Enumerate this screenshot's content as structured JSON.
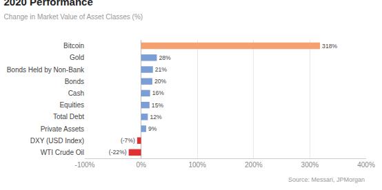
{
  "chart_data": {
    "type": "bar",
    "orientation": "horizontal",
    "title": "2020 Performance",
    "subtitle": "Change in Market Value of Asset Classes (%)",
    "annotations": [
      "Source: Messari, JPMorgan"
    ],
    "categories": [
      "Bitcoin",
      "Gold",
      "Bonds Held by Non-Bank",
      "Bonds",
      "Cash",
      "Equities",
      "Total Debt",
      "Private Assets",
      "DXY (USD Index)",
      "WTI Crude Oil"
    ],
    "values": [
      318,
      28,
      21,
      20,
      16,
      15,
      12,
      9,
      -7,
      -22
    ],
    "value_labels": [
      "318%",
      "28%",
      "21%",
      "20%",
      "16%",
      "15%",
      "12%",
      "9%",
      "(-7%)",
      "(-22%)"
    ],
    "data_labels": true,
    "colors": [
      "#F4A070",
      "#7B9FD4",
      "#7B9FD4",
      "#7B9FD4",
      "#7B9FD4",
      "#7B9FD4",
      "#7B9FD4",
      "#7B9FD4",
      "#E03030",
      "#E03030"
    ],
    "xlim": [
      -100,
      400
    ],
    "xticks": [
      {
        "value": -100,
        "label": "-100%"
      },
      {
        "value": 0,
        "label": "0%"
      },
      {
        "value": 100,
        "label": "100%"
      },
      {
        "value": 200,
        "label": "200%"
      },
      {
        "value": 300,
        "label": "300%"
      },
      {
        "value": 400,
        "label": "400%"
      }
    ],
    "grid": true
  }
}
